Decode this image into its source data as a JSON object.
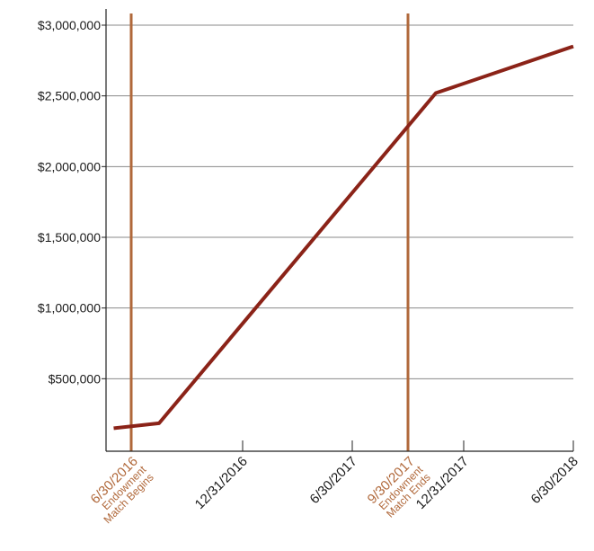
{
  "chart_data": {
    "type": "line",
    "title": "",
    "xlabel": "",
    "ylabel": "",
    "ylim": [
      0,
      3000000
    ],
    "y_ticks": [
      {
        "value": 500000,
        "label": "$500,000"
      },
      {
        "value": 1000000,
        "label": "$1,000,000"
      },
      {
        "value": 1500000,
        "label": "$1,500,000"
      },
      {
        "value": 2000000,
        "label": "$2,000,000"
      },
      {
        "value": 2500000,
        "label": "$2,500,000"
      },
      {
        "value": 3000000,
        "label": "$3,000,000"
      }
    ],
    "x_ticks": [
      {
        "date": "2016-12-31",
        "label": "12/31/2016"
      },
      {
        "date": "2017-06-30",
        "label": "6/30/2017"
      },
      {
        "date": "2017-12-31",
        "label": "12/31/2017"
      },
      {
        "date": "2018-06-30",
        "label": "6/30/2018"
      }
    ],
    "markers": [
      {
        "date": "2016-06-30",
        "label": "6/30/2016",
        "sub1": "Endowment",
        "sub2": "Match Begins"
      },
      {
        "date": "2017-09-30",
        "label": "9/30/2017",
        "sub1": "Endowment",
        "sub2": "Match Ends"
      }
    ],
    "series": [
      {
        "points": [
          {
            "x": "2016-06-01",
            "y": 150000
          },
          {
            "x": "2016-08-15",
            "y": 185000
          },
          {
            "x": "2017-11-15",
            "y": 2520000
          },
          {
            "x": "2018-06-30",
            "y": 2850000
          }
        ]
      }
    ],
    "grid": true,
    "colors": {
      "line": "#8b2318",
      "marker": "#b0683a",
      "grid": "#8a8a8a",
      "axis": "#222222",
      "text": "#1a1a1a"
    }
  }
}
